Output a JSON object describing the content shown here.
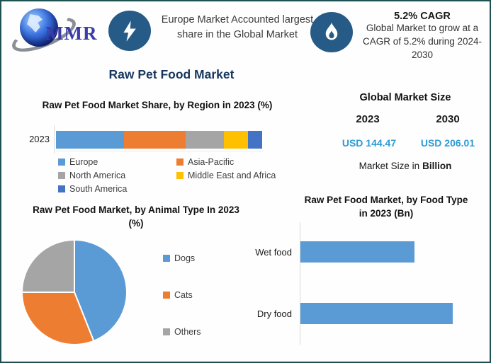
{
  "colors": {
    "border": "#1E5152",
    "icon_bg": "#275B87",
    "title_navy": "#17375E",
    "usd_blue": "#2E9BD5",
    "axis_gray": "#D9D9D9"
  },
  "header": {
    "logo": {
      "text": "MMR"
    },
    "left_callout": "Europe Market Accounted largest share in the Global Market",
    "right_callout": {
      "title": "5.2% CAGR",
      "body": "Global Market to grow at a CAGR of 5.2% during 2024-2030"
    }
  },
  "page_title": "Raw Pet Food Market",
  "market_size": {
    "title": "Global Market Size",
    "year_start": "2023",
    "year_end": "2030",
    "value_start": "USD 144.47",
    "value_end": "USD 206.01",
    "note_prefix": "Market Size in",
    "note_bold": "Billion"
  },
  "chart_data": [
    {
      "type": "bar",
      "orientation": "horizontal-stacked",
      "title": "Raw Pet Food Market Share, by Region in 2023 (%)",
      "categories": [
        "2023"
      ],
      "series": [
        {
          "name": "Europe",
          "values": [
            33
          ],
          "color": "#5B9BD5"
        },
        {
          "name": "Asia-Pacific",
          "values": [
            30
          ],
          "color": "#ED7D31"
        },
        {
          "name": "North America",
          "values": [
            18.5
          ],
          "color": "#A5A5A5"
        },
        {
          "name": "Middle East and Africa",
          "values": [
            11.5
          ],
          "color": "#FFC000"
        },
        {
          "name": "South America",
          "values": [
            7
          ],
          "color": "#4472C4"
        }
      ],
      "xlim": [
        0,
        100
      ],
      "grid": false,
      "legend_position": "bottom",
      "value_note": "segment percentages estimated from bar proportions; no data labels shown"
    },
    {
      "type": "pie",
      "title": "Raw Pet Food Market, by Animal Type In 2023 (%)",
      "labels": [
        "Dogs",
        "Cats",
        "Others"
      ],
      "values": [
        44,
        31,
        25
      ],
      "colors": [
        "#5B9BD5",
        "#ED7D31",
        "#A5A5A5"
      ],
      "start_angle_deg": 0,
      "direction": "clockwise",
      "legend_position": "right",
      "value_note": "slice percentages estimated from pie angles; no data labels shown"
    },
    {
      "type": "bar",
      "orientation": "horizontal",
      "title": "Raw Pet Food Market, by Food Type in 2023 (Bn)",
      "categories": [
        "Wet food",
        "Dry food"
      ],
      "values": [
        75,
        100
      ],
      "color": "#5B9BD5",
      "grid": false,
      "value_note": "relative bar lengths estimated; value axis not labeled in source"
    }
  ]
}
